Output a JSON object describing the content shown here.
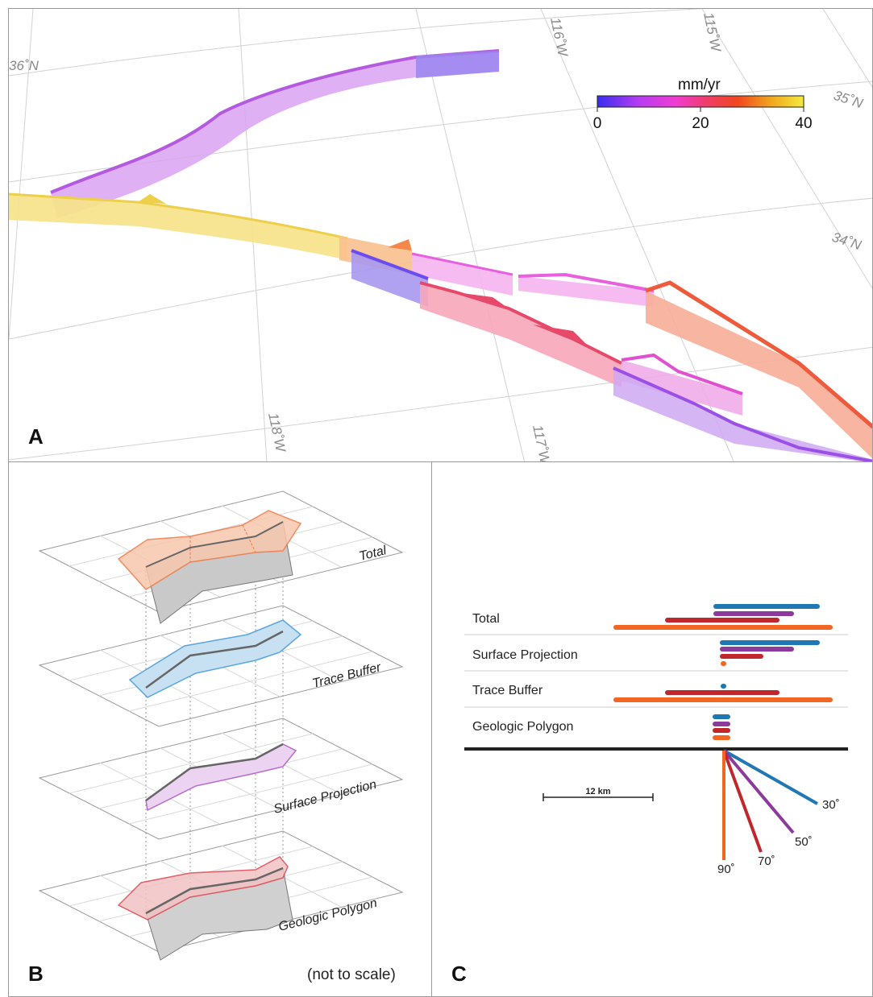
{
  "panelA": {
    "label": "A",
    "longitudes": [
      "118˚W",
      "117˚W",
      "116˚W",
      "115˚W"
    ],
    "latitudes": [
      "36˚N",
      "35˚N",
      "34˚N"
    ],
    "colorbar": {
      "title": "mm/yr",
      "ticks": [
        "0",
        "20",
        "40"
      ],
      "colors": [
        "#3a2cf0",
        "#b43cf2",
        "#f03cd2",
        "#f03c6e",
        "#f0461e",
        "#f0a51e",
        "#f5eb3c"
      ]
    }
  },
  "panelB": {
    "label": "B",
    "note": "(not to scale)",
    "layers": [
      {
        "name": "Total",
        "color": "#f07846"
      },
      {
        "name": "Trace Buffer",
        "color": "#5aa5dc"
      },
      {
        "name": "Surface Projection",
        "color": "#b46ec8"
      },
      {
        "name": "Geologic Polygon",
        "color": "#dc4650"
      }
    ]
  },
  "panelC": {
    "label": "C",
    "rows": [
      "Total",
      "Surface Projection",
      "Trace Buffer",
      "Geologic Polygon"
    ],
    "scale_bar": "12 km",
    "dips": [
      {
        "label": "30˚",
        "color": "#1f77b4"
      },
      {
        "label": "50˚",
        "color": "#8c3a9b"
      },
      {
        "label": "70˚",
        "color": "#c0272d"
      },
      {
        "label": "90˚",
        "color": "#f26522"
      }
    ]
  }
}
